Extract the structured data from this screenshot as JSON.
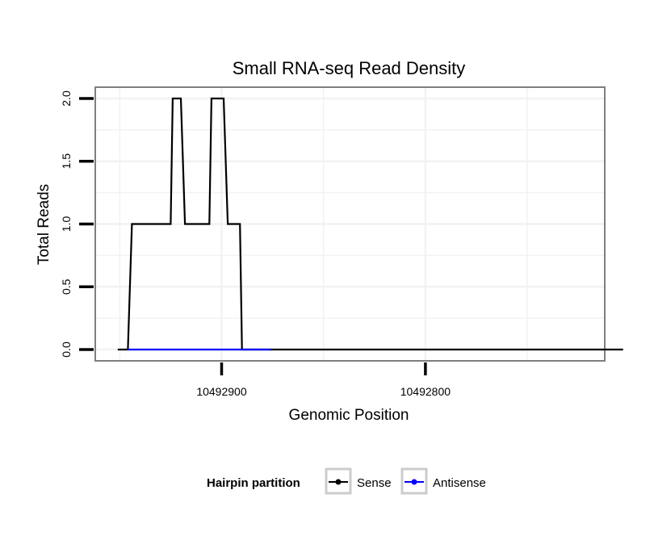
{
  "chart_data": {
    "type": "line",
    "title": "Small RNA-seq Read Density",
    "xlabel": "Genomic Position",
    "ylabel": "Total Reads",
    "xlim": [
      10492962,
      10492712
    ],
    "ylim": [
      -0.09,
      2.09
    ],
    "x_reversed": true,
    "grid": true,
    "x_ticks": [
      {
        "value": 10492900,
        "label": "10492900"
      },
      {
        "value": 10492800,
        "label": "10492800"
      }
    ],
    "y_ticks": [
      {
        "value": 0.0,
        "label": "0.0"
      },
      {
        "value": 0.5,
        "label": "0.5"
      },
      {
        "value": 1.0,
        "label": "1.0"
      },
      {
        "value": 1.5,
        "label": "1.5"
      },
      {
        "value": 2.0,
        "label": "2.0"
      }
    ],
    "legend": {
      "title": "Hairpin partition",
      "placement": "bottom"
    },
    "series": [
      {
        "name": "Sense",
        "color": "#000000",
        "x": [
          10492951,
          10492946,
          10492944,
          10492925,
          10492924,
          10492920,
          10492918,
          10492906,
          10492905,
          10492899,
          10492897,
          10492891,
          10492890,
          10492877,
          10492876,
          10492870,
          10492867,
          10492753,
          10492703
        ],
        "y": [
          0,
          0,
          1,
          1,
          2,
          2,
          1,
          1,
          2,
          2,
          1,
          1,
          0,
          0,
          0,
          0,
          0,
          0,
          0
        ]
      },
      {
        "name": "Antisense",
        "color": "#0000ff",
        "x": [
          10492946,
          10492876
        ],
        "y": [
          0,
          0
        ]
      }
    ]
  }
}
